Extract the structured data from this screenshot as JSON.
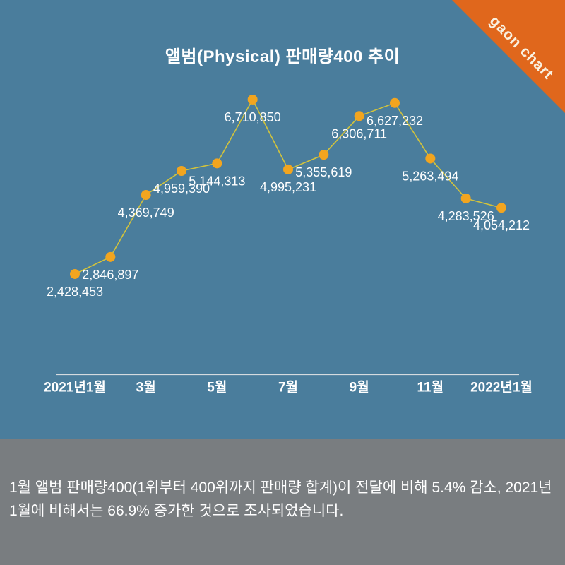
{
  "brand": {
    "ribbon_label": "gaon chart",
    "ribbon_color": "#e0671c",
    "ribbon_text_color": "#f9f1e0"
  },
  "header": {
    "title": "앨범(Physical) 판매량400 추이"
  },
  "colors": {
    "chart_background": "#4a7d9c",
    "panel_background": "#797d80",
    "line": "#d2c33c",
    "dot": "#f2a51f",
    "axis_line": "#d5dbdf",
    "text": "#ffffff"
  },
  "chart_data": {
    "type": "line",
    "title": "앨범(Physical) 판매량400 추이",
    "categories": [
      "2021년1월",
      "",
      "3월",
      "",
      "5월",
      "",
      "7월",
      "",
      "9월",
      "",
      "11월",
      "",
      "2022년1월"
    ],
    "values": [
      2428453,
      2846897,
      4369749,
      4959390,
      5144313,
      6710850,
      4995231,
      5355619,
      6306711,
      6627232,
      5263494,
      4283526,
      4054212
    ],
    "data_labels": [
      "2,428,453",
      "2,846,897",
      "4,369,749",
      "4,959,390",
      "5,144,313",
      "6,710,850",
      "4,995,231",
      "5,355,619",
      "6,306,711",
      "6,627,232",
      "5,263,494",
      "4,283,526",
      "4,054,212"
    ],
    "xlabel": "",
    "ylabel": "",
    "ylim": [
      2000000,
      7000000
    ],
    "grid": "off",
    "legend": "none",
    "marker": "circle"
  },
  "footer": {
    "lines": [
      "1월 앨범 판매량400(1위부터 400위까지 판매량 합계)이 전달에 비해 5.4% 감소, 2021년",
      "1월에 비해서는 66.9% 증가한 것으로 조사되었습니다."
    ]
  }
}
